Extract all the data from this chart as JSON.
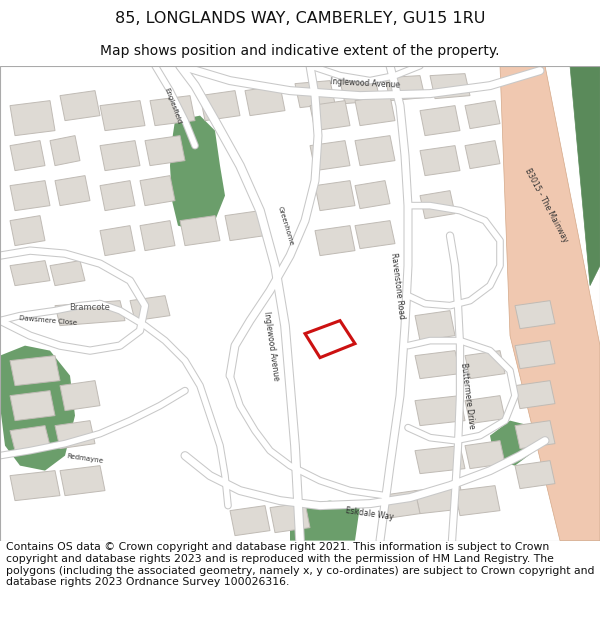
{
  "title_line1": "85, LONGLANDS WAY, CAMBERLEY, GU15 1RU",
  "title_line2": "Map shows position and indicative extent of the property.",
  "footer_text": "Contains OS data © Crown copyright and database right 2021. This information is subject to Crown copyright and database rights 2023 and is reproduced with the permission of HM Land Registry. The polygons (including the associated geometry, namely x, y co-ordinates) are subject to Crown copyright and database rights 2023 Ordnance Survey 100026316.",
  "bg_color": "#ffffff",
  "map_bg": "#f5f3f0",
  "title_fontsize": 11.5,
  "subtitle_fontsize": 10,
  "footer_fontsize": 7.8,
  "road_color": "#ffffff",
  "road_edge": "#c8c8c8",
  "building_fill": "#dedad4",
  "building_edge": "#c0bbb5",
  "green_color": "#6b9e6b",
  "plot_outline": "#cc1111",
  "major_road_fill": "#f0c8b0",
  "major_road_green": "#5a8a5a"
}
